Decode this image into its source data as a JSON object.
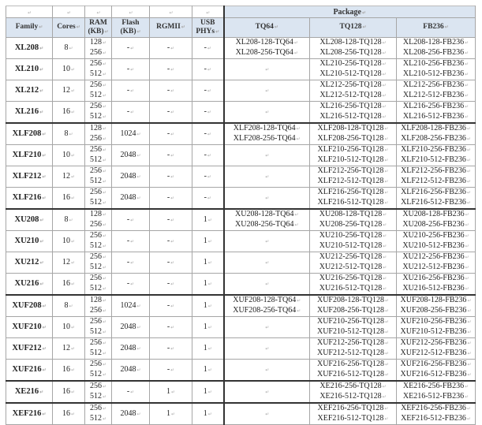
{
  "header": {
    "package": "Package",
    "columns": [
      "Family",
      "Cores",
      "RAM (KB)",
      "Flash (KB)",
      "RGMII",
      "USB PHYs",
      "TQ64",
      "TQ128",
      "FB236"
    ]
  },
  "rows": [
    {
      "family": "XL208",
      "cores": "8",
      "ram": [
        "128",
        "256"
      ],
      "flash": "-",
      "rgmii": "-",
      "usb": "-",
      "tq64": [
        "XL208-128-TQ64",
        "XL208-256-TQ64"
      ],
      "tq128": [
        "XL208-128-TQ128",
        "XL208-256-TQ128"
      ],
      "fb236": [
        "XL208-128-FB236",
        "XL208-256-FB236"
      ]
    },
    {
      "family": "XL210",
      "cores": "10",
      "ram": [
        "256",
        "512"
      ],
      "flash": "-",
      "rgmii": "-",
      "usb": "-",
      "tq64": [],
      "tq128": [
        "XL210-256-TQ128",
        "XL210-512-TQ128"
      ],
      "fb236": [
        "XL210-256-FB236",
        "XL210-512-FB236"
      ]
    },
    {
      "family": "XL212",
      "cores": "12",
      "ram": [
        "256",
        "512"
      ],
      "flash": "-",
      "rgmii": "-",
      "usb": "-",
      "tq64": [],
      "tq128": [
        "XL212-256-TQ128",
        "XL212-512-TQ128"
      ],
      "fb236": [
        "XL212-256-FB236",
        "XL212-512-FB236"
      ]
    },
    {
      "family": "XL216",
      "cores": "16",
      "ram": [
        "256",
        "512"
      ],
      "flash": "-",
      "rgmii": "-",
      "usb": "-",
      "tq64": [],
      "tq128": [
        "XL216-256-TQ128",
        "XL216-512-TQ128"
      ],
      "fb236": [
        "XL216-256-FB236",
        "XL216-512-FB236"
      ]
    },
    {
      "family": "XLF208",
      "cores": "8",
      "ram": [
        "128",
        "256"
      ],
      "flash": "1024",
      "rgmii": "-",
      "usb": "-",
      "tq64": [
        "XLF208-128-TQ64",
        "XLF208-256-TQ64"
      ],
      "tq128": [
        "XLF208-128-TQ128",
        "XLF208-256-TQ128"
      ],
      "fb236": [
        "XLF208-128-FB236",
        "XLF208-256-FB236"
      ]
    },
    {
      "family": "XLF210",
      "cores": "10",
      "ram": [
        "256",
        "512"
      ],
      "flash": "2048",
      "rgmii": "-",
      "usb": "-",
      "tq64": [],
      "tq128": [
        "XLF210-256-TQ128",
        "XLF210-512-TQ128"
      ],
      "fb236": [
        "XLF210-256-FB236",
        "XLF210-512-FB236"
      ]
    },
    {
      "family": "XLF212",
      "cores": "12",
      "ram": [
        "256",
        "512"
      ],
      "flash": "2048",
      "rgmii": "-",
      "usb": "-",
      "tq64": [],
      "tq128": [
        "XLF212-256-TQ128",
        "XLF212-512-TQ128"
      ],
      "fb236": [
        "XLF212-256-FB236",
        "XLF212-512-FB236"
      ]
    },
    {
      "family": "XLF216",
      "cores": "16",
      "ram": [
        "256",
        "512"
      ],
      "flash": "2048",
      "rgmii": "-",
      "usb": "-",
      "tq64": [],
      "tq128": [
        "XLF216-256-TQ128",
        "XLF216-512-TQ128"
      ],
      "fb236": [
        "XLF216-256-FB236",
        "XLF216-512-FB236"
      ]
    },
    {
      "family": "XU208",
      "cores": "8",
      "ram": [
        "128",
        "256"
      ],
      "flash": "-",
      "rgmii": "-",
      "usb": "1",
      "tq64": [
        "XU208-128-TQ64",
        "XU208-256-TQ64"
      ],
      "tq128": [
        "XU208-128-TQ128",
        "XU208-256-TQ128"
      ],
      "fb236": [
        "XU208-128-FB236",
        "XU208-256-FB236"
      ]
    },
    {
      "family": "XU210",
      "cores": "10",
      "ram": [
        "256",
        "512"
      ],
      "flash": "-",
      "rgmii": "-",
      "usb": "1",
      "tq64": [],
      "tq128": [
        "XU210-256-TQ128",
        "XU210-512-TQ128"
      ],
      "fb236": [
        "XU210-256-FB236",
        "XU210-512-FB236"
      ]
    },
    {
      "family": "XU212",
      "cores": "12",
      "ram": [
        "256",
        "512"
      ],
      "flash": "-",
      "rgmii": "-",
      "usb": "1",
      "tq64": [],
      "tq128": [
        "XU212-256-TQ128",
        "XU212-512-TQ128"
      ],
      "fb236": [
        "XU212-256-FB236",
        "XU212-512-FB236"
      ]
    },
    {
      "family": "XU216",
      "cores": "16",
      "ram": [
        "256",
        "512"
      ],
      "flash": "-",
      "rgmii": "-",
      "usb": "1",
      "tq64": [],
      "tq128": [
        "XU216-256-TQ128",
        "XU216-512-TQ128"
      ],
      "fb236": [
        "XU216-256-FB236",
        "XU216-512-FB236"
      ]
    },
    {
      "family": "XUF208",
      "cores": "8",
      "ram": [
        "128",
        "256"
      ],
      "flash": "1024",
      "rgmii": "-",
      "usb": "1",
      "tq64": [
        "XUF208-128-TQ64",
        "XUF208-256-TQ64"
      ],
      "tq128": [
        "XUF208-128-TQ128",
        "XUF208-256-TQ128"
      ],
      "fb236": [
        "XUF208-128-FB236",
        "XUF208-256-FB236"
      ]
    },
    {
      "family": "XUF210",
      "cores": "10",
      "ram": [
        "256",
        "512"
      ],
      "flash": "2048",
      "rgmii": "-",
      "usb": "1",
      "tq64": [],
      "tq128": [
        "XUF210-256-TQ128",
        "XUF210-512-TQ128"
      ],
      "fb236": [
        "XUF210-256-FB236",
        "XUF210-512-FB236"
      ]
    },
    {
      "family": "XUF212",
      "cores": "12",
      "ram": [
        "256",
        "512"
      ],
      "flash": "2048",
      "rgmii": "-",
      "usb": "1",
      "tq64": [],
      "tq128": [
        "XUF212-256-TQ128",
        "XUF212-512-TQ128"
      ],
      "fb236": [
        "XUF212-256-FB236",
        "XUF212-512-FB236"
      ]
    },
    {
      "family": "XUF216",
      "cores": "16",
      "ram": [
        "256",
        "512"
      ],
      "flash": "2048",
      "rgmii": "-",
      "usb": "1",
      "tq64": [],
      "tq128": [
        "XUF216-256-TQ128",
        "XUF216-512-TQ128"
      ],
      "fb236": [
        "XUF216-256-FB236",
        "XUF216-512-FB236"
      ]
    },
    {
      "family": "XE216",
      "cores": "16",
      "ram": [
        "256",
        "512"
      ],
      "flash": "-",
      "rgmii": "1",
      "usb": "1",
      "tq64": [],
      "tq128": [
        "XE216-256-TQ128",
        "XE216-512-TQ128"
      ],
      "fb236": [
        "XE216-256-FB236",
        "XE216-512-FB236"
      ]
    },
    {
      "family": "XEF216",
      "cores": "16",
      "ram": [
        "256",
        "512"
      ],
      "flash": "2048",
      "rgmii": "1",
      "usb": "1",
      "tq64": [],
      "tq128": [
        "XEF216-256-TQ128",
        "XEF216-512-TQ128"
      ],
      "fb236": [
        "XEF216-256-FB236",
        "XEF216-512-FB236"
      ]
    }
  ],
  "group_starts": [
    4,
    8,
    12,
    16,
    17
  ],
  "colors": {
    "header_bg": "#dbe5f1",
    "border": "#a6a6a6"
  }
}
